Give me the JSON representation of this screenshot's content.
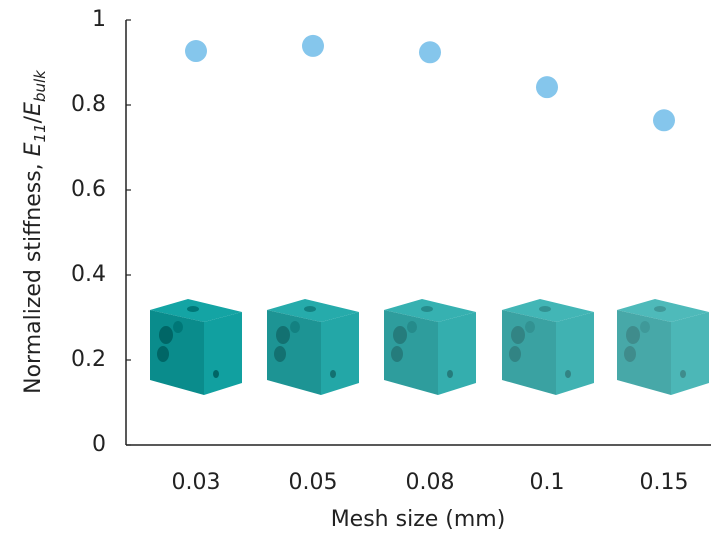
{
  "chart_data": {
    "type": "scatter",
    "xlabel": "Mesh size (mm)",
    "ylabel": [
      "Normalized stiffness, ",
      "E",
      "11",
      "/",
      "E",
      "bulk"
    ],
    "categories": [
      "0.03",
      "0.05",
      "0.08",
      "0.1",
      "0.15"
    ],
    "values": [
      0.927,
      0.939,
      0.924,
      0.842,
      0.764
    ],
    "color": "#85c6ec",
    "ylim": [
      0,
      1
    ],
    "yticks": [
      0,
      0.2,
      0.4,
      0.6,
      0.8,
      1
    ],
    "grid": false
  }
}
